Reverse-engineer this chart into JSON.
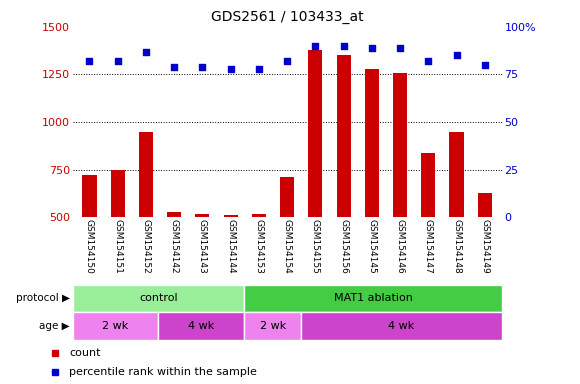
{
  "title": "GDS2561 / 103433_at",
  "samples": [
    "GSM154150",
    "GSM154151",
    "GSM154152",
    "GSM154142",
    "GSM154143",
    "GSM154144",
    "GSM154153",
    "GSM154154",
    "GSM154155",
    "GSM154156",
    "GSM154145",
    "GSM154146",
    "GSM154147",
    "GSM154148",
    "GSM154149"
  ],
  "counts": [
    720,
    750,
    950,
    530,
    520,
    510,
    515,
    710,
    1380,
    1350,
    1280,
    1260,
    840,
    950,
    630
  ],
  "percentiles": [
    82,
    82,
    87,
    79,
    79,
    78,
    78,
    82,
    90,
    90,
    89,
    89,
    82,
    85,
    80
  ],
  "bar_color": "#cc0000",
  "dot_color": "#0000cc",
  "left_axis_color": "#cc0000",
  "right_axis_color": "#0000cc",
  "ylim_left": [
    500,
    1500
  ],
  "ylim_right": [
    0,
    100
  ],
  "yticks_left": [
    500,
    750,
    1000,
    1250,
    1500
  ],
  "yticks_right": [
    0,
    25,
    50,
    75,
    100
  ],
  "ytick_right_labels": [
    "0",
    "25",
    "50",
    "75",
    "100%"
  ],
  "grid_lines": [
    750,
    1000,
    1250
  ],
  "age_groups": [
    {
      "label": "2 wk",
      "start": 0,
      "end": 3,
      "color": "#ee82ee"
    },
    {
      "label": "4 wk",
      "start": 3,
      "end": 6,
      "color": "#cc44cc"
    },
    {
      "label": "2 wk",
      "start": 6,
      "end": 8,
      "color": "#ee82ee"
    },
    {
      "label": "4 wk",
      "start": 8,
      "end": 15,
      "color": "#cc44cc"
    }
  ],
  "protocol_groups": [
    {
      "label": "control",
      "start": 0,
      "end": 6,
      "color": "#99ee99"
    },
    {
      "label": "MAT1 ablation",
      "start": 6,
      "end": 15,
      "color": "#44cc44"
    }
  ],
  "legend_count_label": "count",
  "legend_pct_label": "percentile rank within the sample",
  "xticklabel_area_color": "#c8c8c8",
  "protocol_label": "protocol ▶",
  "age_label": "age ▶"
}
